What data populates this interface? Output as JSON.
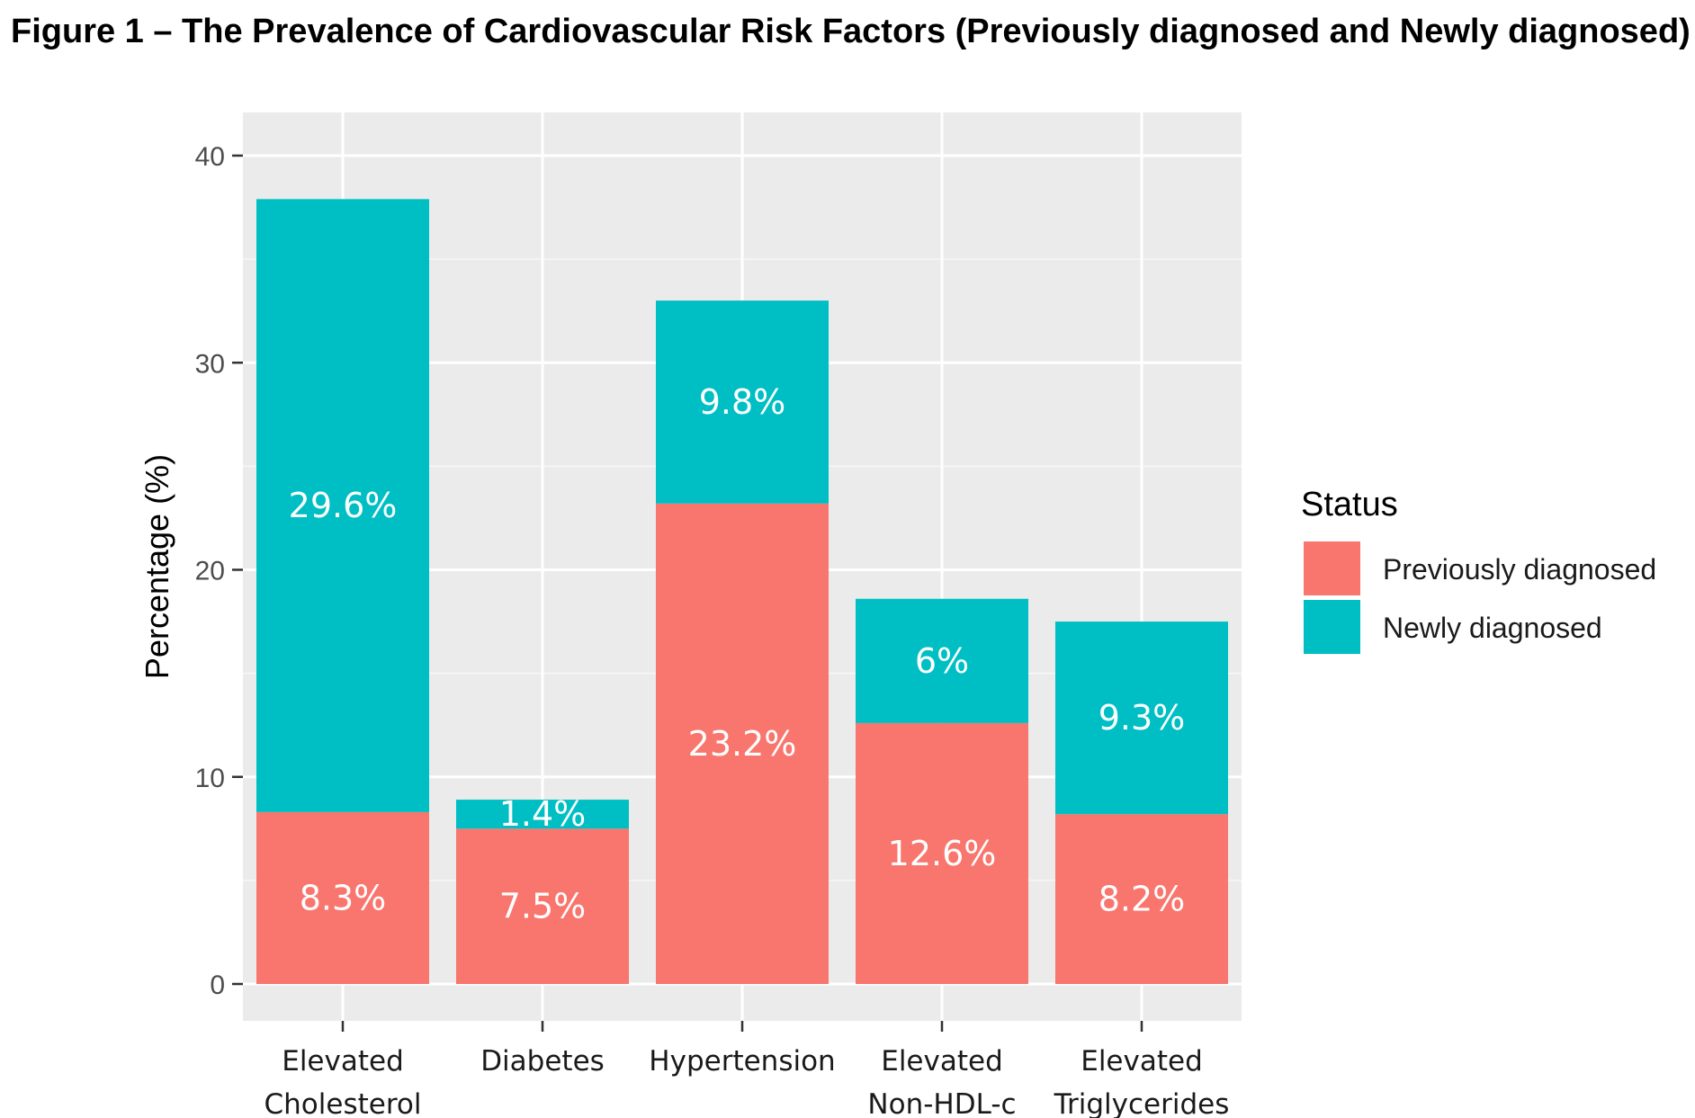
{
  "chart_data": {
    "type": "bar",
    "stacked": true,
    "title": "Figure 1 – The Prevalence of Cardiovascular Risk Factors (Previously diagnosed and Newly diagnosed)",
    "xlabel": "",
    "ylabel": "Percentage (%)",
    "ylim": [
      0,
      42
    ],
    "yticks": [
      0,
      10,
      20,
      30,
      40
    ],
    "grid": true,
    "categories": [
      [
        "Elevated",
        "Cholesterol"
      ],
      [
        "Diabetes"
      ],
      [
        "Hypertension"
      ],
      [
        "Elevated",
        "Non-HDL-c"
      ],
      [
        "Elevated",
        "Triglycerides"
      ]
    ],
    "series": [
      {
        "name": "Previously diagnosed",
        "color": "#F8766D",
        "values": [
          8.3,
          7.5,
          23.2,
          12.6,
          8.2
        ],
        "labels": [
          "8.3%",
          "7.5%",
          "23.2%",
          "12.6%",
          "8.2%"
        ]
      },
      {
        "name": "Newly diagnosed",
        "color": "#00BFC4",
        "values": [
          29.6,
          1.4,
          9.8,
          6,
          9.3
        ],
        "labels": [
          "29.6%",
          "1.4%",
          "9.8%",
          "6%",
          "9.3%"
        ]
      }
    ],
    "legend": {
      "title": "Status",
      "position": "right"
    },
    "panel_background": "#EBEBEB",
    "grid_color": "#FFFFFF"
  }
}
